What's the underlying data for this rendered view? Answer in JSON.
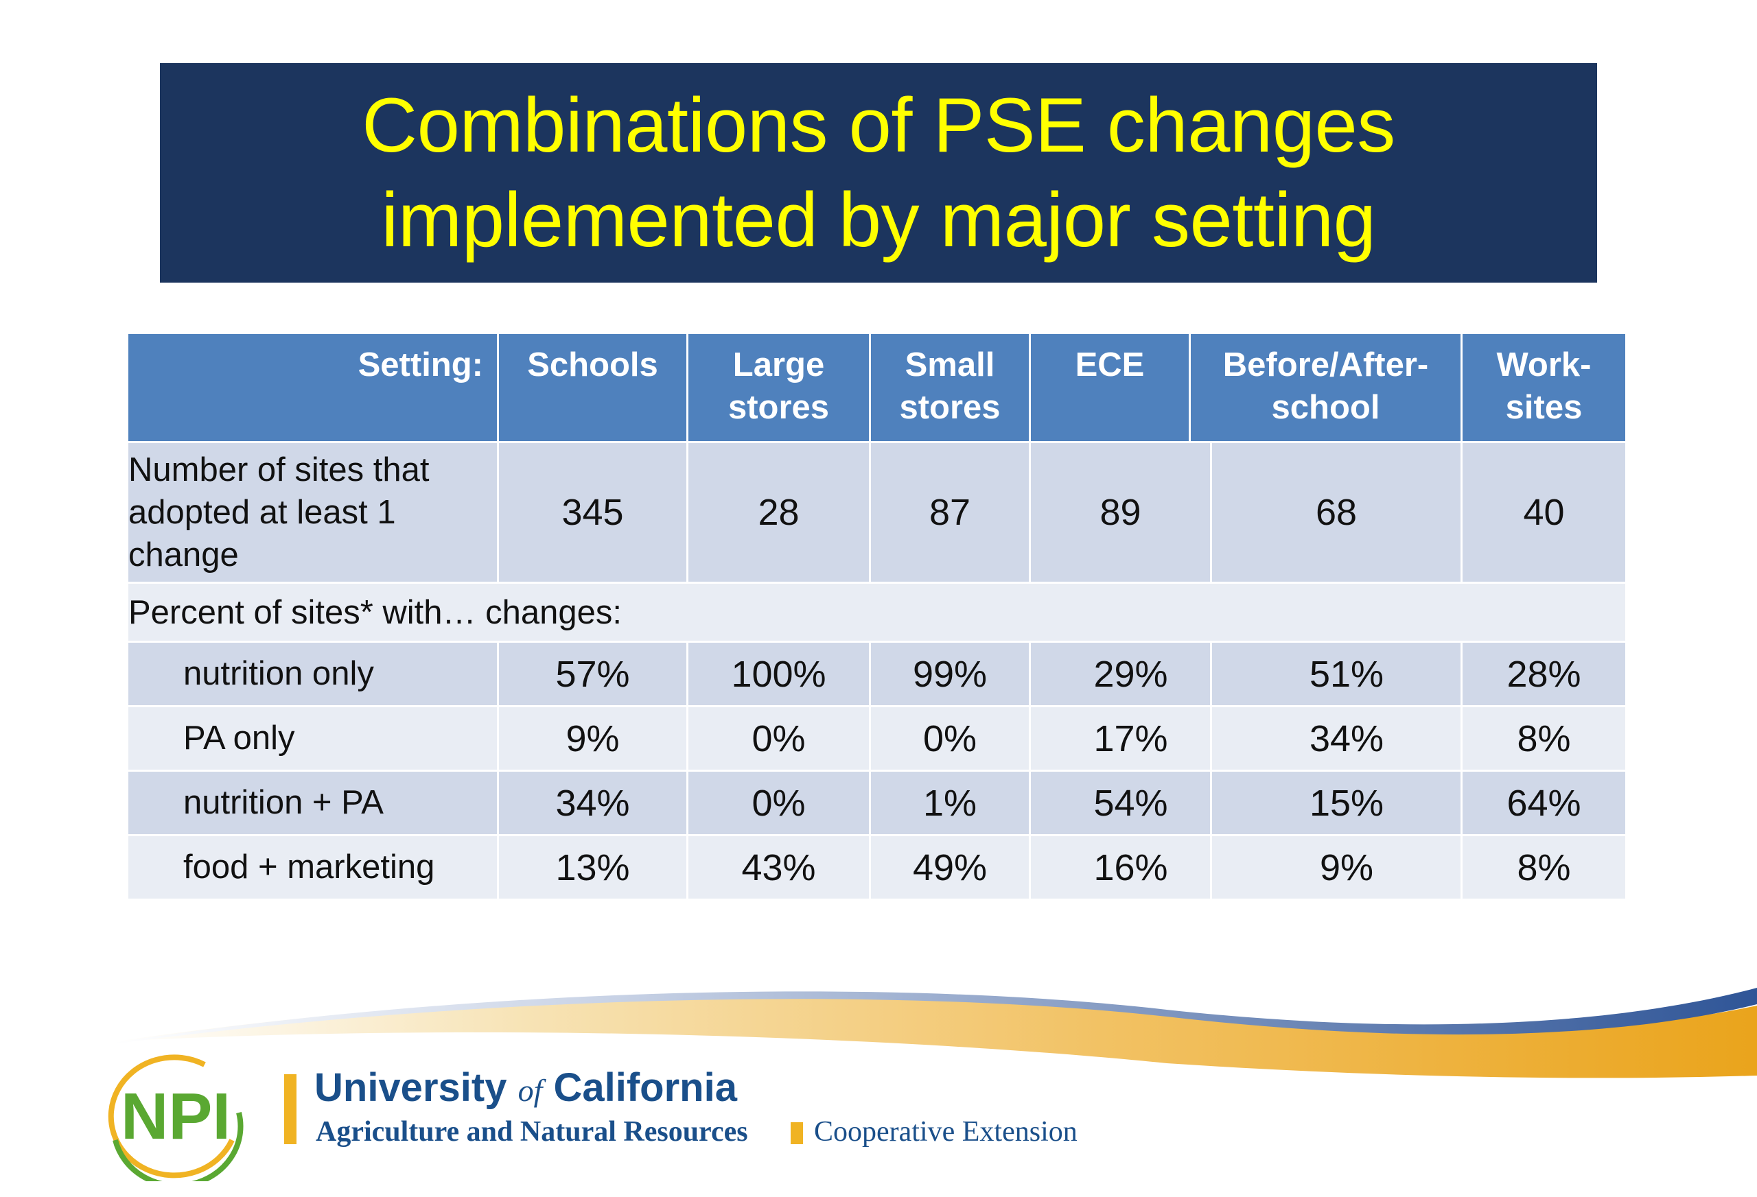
{
  "title": {
    "line1": "Combinations of PSE changes",
    "line2": "implemented by major setting"
  },
  "table": {
    "header": {
      "setting_label": "Setting:",
      "columns": [
        {
          "line1": "Schools",
          "line2": ""
        },
        {
          "line1": "Large",
          "line2": "stores"
        },
        {
          "line1": "Small",
          "line2": "stores"
        },
        {
          "line1": "ECE",
          "line2": ""
        },
        {
          "line1": "Before/After-",
          "line2": "school"
        },
        {
          "line1": "Work-",
          "line2": "sites"
        }
      ]
    },
    "count_row": {
      "label_line1": "Number of sites that",
      "label_line2": "adopted at least 1",
      "label_line3": "change",
      "values": [
        "345",
        "28",
        "87",
        "89",
        "68",
        "40"
      ]
    },
    "section_label": "Percent of sites* with… changes:",
    "rows": [
      {
        "label": "nutrition only",
        "values": [
          "57%",
          "100%",
          "99%",
          "29%",
          "51%",
          "28%"
        ]
      },
      {
        "label": "PA only",
        "values": [
          "9%",
          "0%",
          "0%",
          "17%",
          "34%",
          "8%"
        ]
      },
      {
        "label": "nutrition + PA",
        "values": [
          "34%",
          "0%",
          "1%",
          "54%",
          "15%",
          "64%"
        ]
      },
      {
        "label": "food + marketing",
        "values": [
          "13%",
          "43%",
          "49%",
          "16%",
          "9%",
          "8%"
        ]
      }
    ]
  },
  "footer": {
    "npi_logo_text": "NPI",
    "uc_name_part1": "University ",
    "uc_name_of": "of",
    "uc_name_part2": " California",
    "uc_subtitle": "Agriculture and Natural Resources",
    "cooperative_extension": "Cooperative Extension",
    "colors": {
      "navy": "#1c355e",
      "title_yellow": "#ffff00",
      "header_blue": "#4f81bd",
      "row_dark": "#d0d8e8",
      "row_light": "#e9edf4",
      "uc_blue": "#1a4f8a",
      "uc_gold": "#f0b323",
      "npi_green": "#5aa832"
    }
  }
}
